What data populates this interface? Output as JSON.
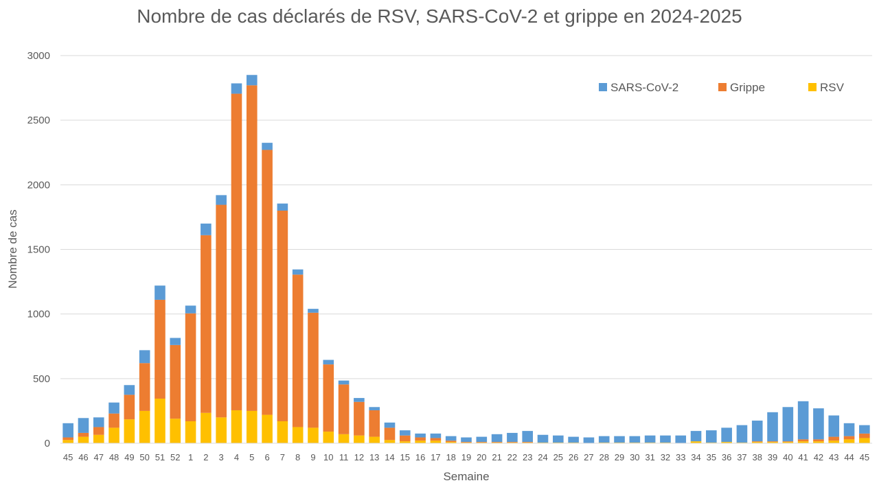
{
  "chart_data": {
    "type": "bar",
    "stacked": true,
    "title": "Nombre de cas déclarés de RSV, SARS-CoV-2 et grippe en 2024-2025",
    "xlabel": "Semaine",
    "ylabel": "Nombre de cas",
    "ylim": [
      0,
      3000
    ],
    "yticks": [
      0,
      500,
      1000,
      1500,
      2000,
      2500,
      3000
    ],
    "grid": true,
    "legend_position": "top-right",
    "categories": [
      "45",
      "46",
      "47",
      "48",
      "49",
      "50",
      "51",
      "52",
      "1",
      "2",
      "3",
      "4",
      "5",
      "6",
      "7",
      "8",
      "9",
      "10",
      "11",
      "12",
      "13",
      "14",
      "15",
      "16",
      "17",
      "18",
      "19",
      "20",
      "21",
      "22",
      "23",
      "24",
      "25",
      "26",
      "27",
      "28",
      "29",
      "30",
      "31",
      "32",
      "33",
      "34",
      "35",
      "36",
      "37",
      "38",
      "39",
      "40",
      "41",
      "42",
      "43",
      "44",
      "45"
    ],
    "series": [
      {
        "name": "RSV",
        "color": "#FFC000",
        "values": [
          25,
          50,
          65,
          120,
          185,
          250,
          345,
          190,
          170,
          235,
          200,
          255,
          250,
          220,
          170,
          125,
          120,
          90,
          70,
          60,
          50,
          25,
          15,
          20,
          20,
          10,
          5,
          5,
          5,
          5,
          5,
          5,
          5,
          5,
          0,
          5,
          5,
          5,
          5,
          5,
          0,
          15,
          5,
          10,
          5,
          10,
          10,
          10,
          15,
          15,
          20,
          30,
          40
        ]
      },
      {
        "name": "Grippe",
        "color": "#ED7D31",
        "values": [
          20,
          30,
          60,
          110,
          190,
          370,
          765,
          570,
          835,
          1375,
          1645,
          2450,
          2520,
          2050,
          1630,
          1180,
          890,
          520,
          385,
          260,
          205,
          95,
          45,
          25,
          20,
          10,
          5,
          5,
          5,
          5,
          5,
          0,
          0,
          0,
          0,
          0,
          0,
          0,
          0,
          0,
          0,
          0,
          0,
          0,
          0,
          5,
          5,
          5,
          15,
          15,
          30,
          25,
          35
        ]
      },
      {
        "name": "SARS-CoV-2",
        "color": "#5B9BD5",
        "values": [
          110,
          115,
          75,
          85,
          75,
          100,
          110,
          55,
          60,
          90,
          75,
          80,
          80,
          55,
          55,
          40,
          30,
          35,
          30,
          30,
          25,
          40,
          40,
          30,
          35,
          35,
          35,
          40,
          60,
          70,
          85,
          60,
          55,
          45,
          45,
          50,
          50,
          50,
          55,
          55,
          60,
          80,
          95,
          110,
          135,
          160,
          225,
          265,
          295,
          240,
          165,
          100,
          65
        ]
      }
    ],
    "legend_order": [
      "SARS-CoV-2",
      "Grippe",
      "RSV"
    ]
  }
}
